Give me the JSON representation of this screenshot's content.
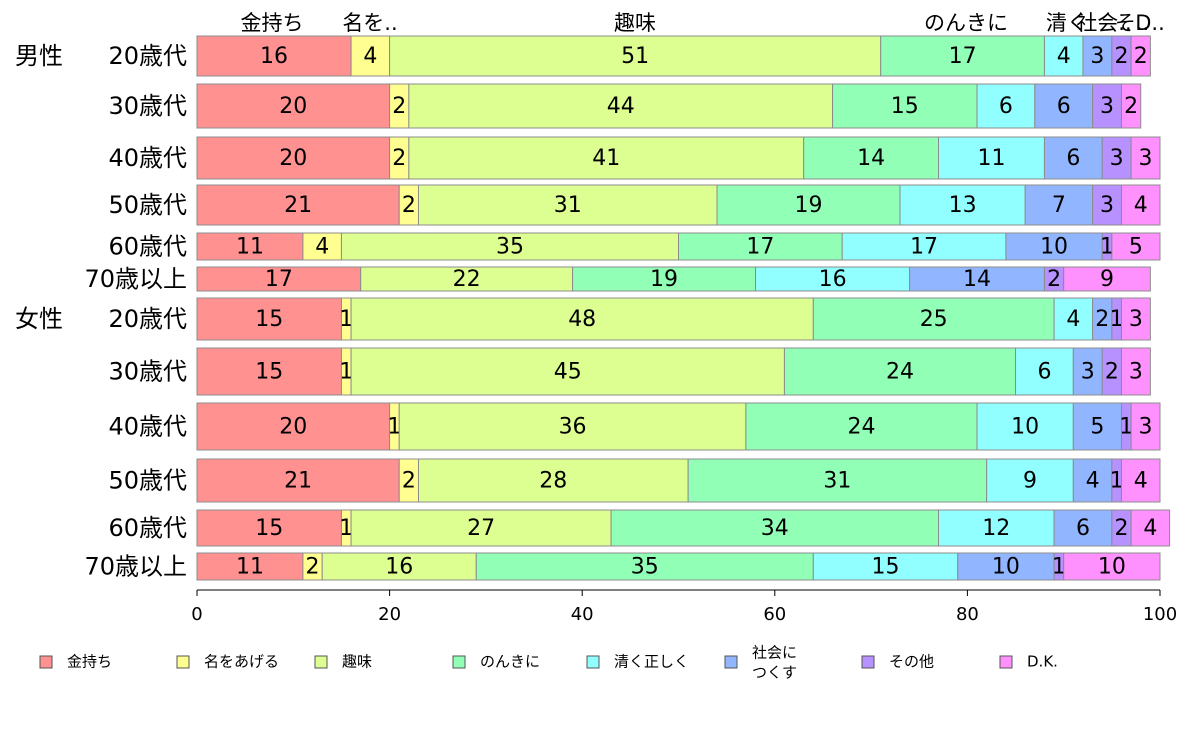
{
  "chart_data": {
    "type": "bar",
    "orientation": "horizontal",
    "stacked": true,
    "xlim": [
      0,
      100
    ],
    "xticks": [
      0,
      20,
      40,
      60,
      80,
      100
    ],
    "grid": false,
    "legend_position": "bottom",
    "top_labels": [
      "金持ち",
      "名を..",
      "趣味",
      "のんきに",
      "清く",
      "社会..",
      "そ..",
      "D.."
    ],
    "categories": [
      {
        "group": "男性",
        "label": "20歳代"
      },
      {
        "group": "",
        "label": "30歳代"
      },
      {
        "group": "",
        "label": "40歳代"
      },
      {
        "group": "",
        "label": "50歳代"
      },
      {
        "group": "",
        "label": "60歳代"
      },
      {
        "group": "",
        "label": "70歳以上"
      },
      {
        "group": "女性",
        "label": "20歳代"
      },
      {
        "group": "",
        "label": "30歳代"
      },
      {
        "group": "",
        "label": "40歳代"
      },
      {
        "group": "",
        "label": "50歳代"
      },
      {
        "group": "",
        "label": "60歳代"
      },
      {
        "group": "",
        "label": "70歳以上"
      }
    ],
    "series": [
      {
        "name": "金持ち",
        "legend": [
          "金持ち"
        ],
        "color": "#ff9191",
        "values": [
          16,
          20,
          20,
          21,
          11,
          17,
          15,
          15,
          20,
          21,
          15,
          11
        ]
      },
      {
        "name": "名をあげる",
        "legend": [
          "名をあげる"
        ],
        "color": "#ffff91",
        "values": [
          4,
          2,
          2,
          2,
          4,
          0,
          1,
          1,
          1,
          2,
          1,
          2
        ]
      },
      {
        "name": "趣味",
        "legend": [
          "趣味"
        ],
        "color": "#ddff91",
        "values": [
          51,
          44,
          41,
          31,
          35,
          22,
          48,
          45,
          36,
          28,
          27,
          16
        ]
      },
      {
        "name": "のんきに",
        "legend": [
          "のんきに"
        ],
        "color": "#91ffb6",
        "values": [
          17,
          15,
          14,
          19,
          17,
          19,
          25,
          24,
          24,
          31,
          34,
          35
        ]
      },
      {
        "name": "清く正しく",
        "legend": [
          "清く正しく"
        ],
        "color": "#91ffff",
        "values": [
          4,
          6,
          11,
          13,
          17,
          16,
          4,
          6,
          10,
          9,
          12,
          15
        ]
      },
      {
        "name": "社会につくす",
        "legend": [
          "社会に",
          "つくす"
        ],
        "color": "#91b6ff",
        "values": [
          3,
          6,
          6,
          7,
          10,
          14,
          2,
          3,
          5,
          4,
          6,
          10
        ]
      },
      {
        "name": "その他",
        "legend": [
          "その他"
        ],
        "color": "#b691ff",
        "values": [
          2,
          3,
          3,
          3,
          1,
          2,
          1,
          2,
          1,
          1,
          2,
          1
        ]
      },
      {
        "name": "D.K.",
        "legend": [
          "D.K."
        ],
        "color": "#ff91ff",
        "values": [
          2,
          2,
          3,
          4,
          5,
          9,
          3,
          3,
          3,
          4,
          4,
          10
        ]
      }
    ]
  }
}
